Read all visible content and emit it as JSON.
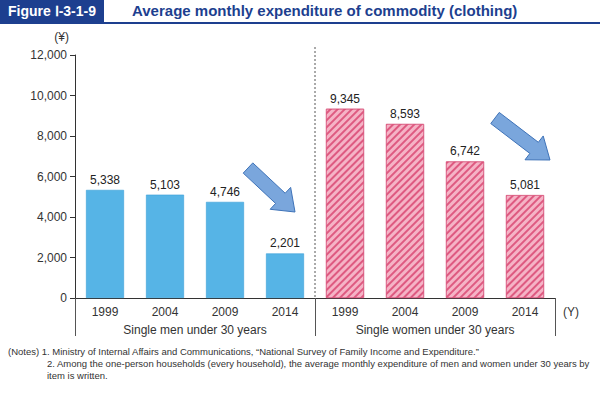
{
  "chart_data": {
    "type": "bar",
    "figure_label": "Figure Ⅰ-3-1-9",
    "title": "Average monthly expenditure of commodity (clothing)",
    "x_label": "(Y)",
    "y_label": "(¥)",
    "categories": [
      "1999",
      "2004",
      "2009",
      "2014",
      "1999",
      "2004",
      "2009",
      "2014"
    ],
    "series": [
      {
        "name": "Single men under 30 years",
        "color": "#56b4e6",
        "values": [
          5338,
          5103,
          4746,
          2201,
          null,
          null,
          null,
          null
        ],
        "value_labels": [
          "5,338",
          "5,103",
          "4,746",
          "2,201",
          null,
          null,
          null,
          null
        ]
      },
      {
        "name": "Single women under 30 years",
        "color": "#f5b3c6",
        "values": [
          null,
          null,
          null,
          null,
          9345,
          8593,
          6742,
          5081
        ],
        "value_labels": [
          null,
          null,
          null,
          null,
          "9,345",
          "8,593",
          "6,742",
          "5,081"
        ]
      }
    ],
    "ylim": [
      0,
      12000
    ],
    "yticks": [
      0,
      {
        "value": 2000,
        "label": "2,000"
      },
      {
        "value": 4000,
        "label": "4,000"
      },
      {
        "value": 6000,
        "label": "6,000"
      },
      {
        "value": 8000,
        "label": "8,000"
      },
      {
        "value": 10000,
        "label": "10,000"
      },
      {
        "value": 12000,
        "label": "12,000"
      }
    ],
    "grid": false,
    "data_labels": true,
    "notes": [
      "(Notes) 1. Ministry of Internal Affairs and Communications, “National Survey of Family Income and Expenditure.”",
      "2. Among the one-person households (every household), the average monthly expenditure of men and women under 30 years by item is written."
    ]
  }
}
